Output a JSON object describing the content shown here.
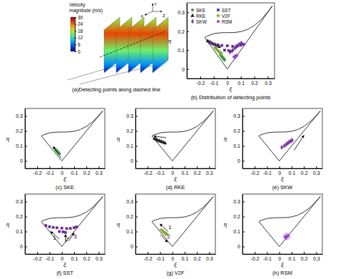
{
  "chart_data": [
    {
      "type": "illustration",
      "title": "(a)Detecting points along dashed line",
      "colorbar": {
        "label": "Velocity magnitude (m/s)",
        "lim": [
          0,
          30
        ],
        "ticks": [
          0,
          6,
          12,
          18,
          24,
          30
        ]
      },
      "axis_labels": [
        "Y",
        "X",
        "Z"
      ]
    },
    {
      "type": "scatter",
      "title": "(b) Distribution of detecting points",
      "x_label": "ξ",
      "y_label": "η",
      "xlim": [
        -0.3,
        0.35
      ],
      "ylim": [
        -0.05,
        0.35
      ],
      "xticks": [
        -0.2,
        -0.1,
        0,
        0.1,
        0.2,
        0.3
      ],
      "yticks": [
        0,
        0.1,
        0.2,
        0.3
      ],
      "legend": "upper left",
      "series": [
        {
          "type": "line",
          "color": "#000000",
          "x": [
            0,
            -0.1667,
            -0.15,
            -0.1,
            -0.05,
            0,
            0.05,
            0.1,
            0.15,
            0.2,
            0.25,
            0.3,
            0.3333,
            0
          ],
          "values": [
            0,
            0.1667,
            0.174,
            0.1872,
            0.1918,
            0.1925,
            0.1931,
            0.1976,
            0.2093,
            0.2303,
            0.2613,
            0.3017,
            0.3333,
            0
          ]
        },
        {
          "name": "SKE",
          "color": "#3a9a3a",
          "marker": "circle",
          "x": [
            -0.05,
            -0.045,
            -0.04,
            -0.035,
            -0.03,
            -0.025,
            -0.02
          ],
          "values": [
            0.075,
            0.07,
            0.066,
            0.061,
            0.057,
            0.052,
            0.048
          ]
        },
        {
          "name": "RKE",
          "color": "#222222",
          "marker": "triangle",
          "x": [
            -0.145,
            -0.13,
            -0.12,
            -0.105,
            -0.09,
            -0.075,
            -0.06
          ],
          "values": [
            0.148,
            0.142,
            0.138,
            0.133,
            0.128,
            0.124,
            0.118
          ]
        },
        {
          "name": "SKW",
          "color": "#7a3fb0",
          "marker": "diamond",
          "x": [
            0.02,
            0.04,
            0.055,
            0.065,
            0.075,
            0.085,
            0.095,
            0.105
          ],
          "values": [
            0.09,
            0.1,
            0.11,
            0.117,
            0.123,
            0.128,
            0.133,
            0.138
          ]
        },
        {
          "name": "SST",
          "color": "#6a2c91",
          "marker": "square",
          "x": [
            -0.13,
            -0.1,
            -0.07,
            -0.04,
            0,
            0.04,
            0.07,
            0.1,
            0.12,
            -0.02,
            0.01,
            0.03
          ],
          "values": [
            0.14,
            0.132,
            0.128,
            0.125,
            0.123,
            0.12,
            0.121,
            0.126,
            0.131,
            0.1,
            0.098,
            0.094
          ]
        },
        {
          "name": "V2F",
          "color": "#7fa830",
          "marker": "star",
          "x": [
            -0.09,
            -0.08,
            -0.07,
            -0.06,
            -0.05,
            -0.045
          ],
          "values": [
            0.112,
            0.104,
            0.097,
            0.09,
            0.085,
            0.08
          ]
        },
        {
          "name": "RSM",
          "color": "#9b3fc8",
          "marker": "circle",
          "x": [
            0.05,
            0.055,
            0.06,
            0.065,
            0.07,
            0.058
          ],
          "values": [
            0.064,
            0.066,
            0.068,
            0.07,
            0.072,
            0.062
          ]
        }
      ]
    },
    {
      "type": "scatter",
      "title": "(c) SKE",
      "x_label": "ξ",
      "y_label": "η",
      "xlim": [
        -0.3,
        0.35
      ],
      "ylim": [
        -0.05,
        0.35
      ],
      "xticks": [
        -0.2,
        -0.1,
        0,
        0.1,
        0.2,
        0.3
      ],
      "yticks": [
        0,
        0.1,
        0.2,
        0.3
      ],
      "series": [
        {
          "type": "line",
          "color": "#000000",
          "x": [
            0,
            -0.1667,
            -0.15,
            -0.1,
            -0.05,
            0,
            0.05,
            0.1,
            0.15,
            0.2,
            0.25,
            0.3,
            0.3333,
            0
          ],
          "values": [
            0,
            0.1667,
            0.174,
            0.1872,
            0.1918,
            0.1925,
            0.1931,
            0.1976,
            0.2093,
            0.2303,
            0.2613,
            0.3017,
            0.3333,
            0
          ]
        },
        {
          "color": "#3a9a3a",
          "marker": "circle",
          "x": [
            -0.05,
            -0.045,
            -0.04,
            -0.035,
            -0.03,
            -0.025,
            -0.02
          ],
          "values": [
            0.075,
            0.07,
            0.066,
            0.061,
            0.057,
            0.052,
            0.048
          ]
        }
      ],
      "arrows": [
        {
          "x": [
            -0.005,
            -0.07
          ],
          "y": [
            0.02,
            0.095
          ]
        }
      ]
    },
    {
      "type": "scatter",
      "title": "(d) RKE",
      "x_label": "ξ",
      "y_label": "η",
      "xlim": [
        -0.3,
        0.35
      ],
      "ylim": [
        -0.05,
        0.35
      ],
      "xticks": [
        -0.2,
        -0.1,
        0,
        0.1,
        0.2,
        0.3
      ],
      "yticks": [
        0,
        0.1,
        0.2,
        0.3
      ],
      "series": [
        {
          "type": "line",
          "color": "#000000",
          "x": [
            0,
            -0.1667,
            -0.15,
            -0.1,
            -0.05,
            0,
            0.05,
            0.1,
            0.15,
            0.2,
            0.25,
            0.3,
            0.3333,
            0
          ],
          "values": [
            0,
            0.1667,
            0.174,
            0.1872,
            0.1918,
            0.1925,
            0.1931,
            0.1976,
            0.2093,
            0.2303,
            0.2613,
            0.3017,
            0.3333,
            0
          ]
        },
        {
          "color": "#222222",
          "marker": "triangle",
          "x": [
            -0.145,
            -0.13,
            -0.12,
            -0.105,
            -0.09,
            -0.075,
            -0.06
          ],
          "values": [
            0.148,
            0.142,
            0.138,
            0.133,
            0.128,
            0.124,
            0.118
          ]
        }
      ],
      "arrows": [
        {
          "x": [
            -0.05,
            -0.15
          ],
          "y": [
            0.155,
            0.165
          ]
        }
      ]
    },
    {
      "type": "scatter",
      "title": "(e) SKW",
      "x_label": "ξ",
      "y_label": "η",
      "xlim": [
        -0.3,
        0.35
      ],
      "ylim": [
        -0.05,
        0.35
      ],
      "xticks": [
        -0.2,
        -0.1,
        0,
        0.1,
        0.2,
        0.3
      ],
      "yticks": [
        0,
        0.1,
        0.2,
        0.3
      ],
      "series": [
        {
          "type": "line",
          "color": "#000000",
          "x": [
            0,
            -0.1667,
            -0.15,
            -0.1,
            -0.05,
            0,
            0.05,
            0.1,
            0.15,
            0.2,
            0.25,
            0.3,
            0.3333,
            0
          ],
          "values": [
            0,
            0.1667,
            0.174,
            0.1872,
            0.1918,
            0.1925,
            0.1931,
            0.1976,
            0.2093,
            0.2303,
            0.2613,
            0.3017,
            0.3333,
            0
          ]
        },
        {
          "color": "#7a3fb0",
          "marker": "diamond",
          "x": [
            0.02,
            0.04,
            0.055,
            0.065,
            0.075,
            0.085,
            0.095,
            0.105
          ],
          "values": [
            0.09,
            0.1,
            0.11,
            0.117,
            0.123,
            0.128,
            0.133,
            0.138
          ]
        }
      ],
      "arrows": [
        {
          "x": [
            0.12,
            0.2
          ],
          "y": [
            0.07,
            0.17
          ]
        }
      ]
    },
    {
      "type": "scatter",
      "title": "(f) SST",
      "x_label": "ξ",
      "y_label": "η",
      "xlim": [
        -0.3,
        0.35
      ],
      "ylim": [
        -0.05,
        0.35
      ],
      "xticks": [
        -0.2,
        -0.1,
        0,
        0.1,
        0.2,
        0.3
      ],
      "yticks": [
        0,
        0.1,
        0.2,
        0.3
      ],
      "series": [
        {
          "type": "line",
          "color": "#000000",
          "x": [
            0,
            -0.1667,
            -0.15,
            -0.1,
            -0.05,
            0,
            0.05,
            0.1,
            0.15,
            0.2,
            0.25,
            0.3,
            0.3333,
            0
          ],
          "values": [
            0,
            0.1667,
            0.174,
            0.1872,
            0.1918,
            0.1925,
            0.1931,
            0.1976,
            0.2093,
            0.2303,
            0.2613,
            0.3017,
            0.3333,
            0
          ]
        },
        {
          "color": "#6a2c91",
          "marker": "square",
          "x": [
            -0.13,
            -0.1,
            -0.07,
            -0.04,
            0,
            0.04,
            0.07,
            0.1,
            0.12,
            -0.02,
            0.01,
            0.03
          ],
          "values": [
            0.14,
            0.132,
            0.128,
            0.125,
            0.123,
            0.12,
            0.121,
            0.126,
            0.131,
            0.1,
            0.098,
            0.094
          ]
        }
      ],
      "arrows": [
        {
          "x": [
            -0.02,
            -0.09
          ],
          "y": [
            0.05,
            0.1
          ]
        },
        {
          "x": [
            0.03,
            0.03
          ],
          "y": [
            0.03,
            0.08
          ]
        },
        {
          "x": [
            0.06,
            0.1
          ],
          "y": [
            0.04,
            0.09
          ]
        }
      ],
      "annotations": [
        {
          "text": "1",
          "x": -0.06,
          "y": 0.045
        },
        {
          "text": "2",
          "x": 0.045,
          "y": 0.035
        },
        {
          "text": "3",
          "x": 0.11,
          "y": 0.055
        }
      ]
    },
    {
      "type": "scatter",
      "title": "(g) V2F",
      "x_label": "ξ",
      "y_label": "η",
      "xlim": [
        -0.3,
        0.35
      ],
      "ylim": [
        -0.05,
        0.35
      ],
      "xticks": [
        -0.2,
        -0.1,
        0,
        0.1,
        0.2,
        0.3
      ],
      "yticks": [
        0,
        0.1,
        0.2,
        0.3
      ],
      "series": [
        {
          "type": "line",
          "color": "#000000",
          "x": [
            0,
            -0.1667,
            -0.15,
            -0.1,
            -0.05,
            0,
            0.05,
            0.1,
            0.15,
            0.2,
            0.25,
            0.3,
            0.3333,
            0
          ],
          "values": [
            0,
            0.1667,
            0.174,
            0.1872,
            0.1918,
            0.1925,
            0.1931,
            0.1976,
            0.2093,
            0.2303,
            0.2613,
            0.3017,
            0.3333,
            0
          ]
        },
        {
          "color": "#7fa830",
          "marker": "star",
          "x": [
            -0.09,
            -0.08,
            -0.07,
            -0.06,
            -0.05,
            -0.045
          ],
          "values": [
            0.112,
            0.104,
            0.097,
            0.09,
            0.085,
            0.08
          ]
        }
      ],
      "arrows": [
        {
          "x": [
            -0.035,
            -0.1
          ],
          "y": [
            0.1,
            0.15
          ]
        },
        {
          "x": [
            -0.1,
            -0.04
          ],
          "y": [
            0.08,
            0.03
          ]
        }
      ],
      "annotations": [
        {
          "text": "1",
          "x": -0.02,
          "y": 0.115
        },
        {
          "text": "2",
          "x": -0.03,
          "y": 0.055
        }
      ]
    },
    {
      "type": "scatter",
      "title": "(h) RSM",
      "x_label": "ξ",
      "y_label": "η",
      "xlim": [
        -0.3,
        0.35
      ],
      "ylim": [
        -0.05,
        0.35
      ],
      "xticks": [
        -0.2,
        -0.1,
        0,
        0.1,
        0.2,
        0.3
      ],
      "yticks": [
        0,
        0.1,
        0.2,
        0.3
      ],
      "series": [
        {
          "type": "line",
          "color": "#000000",
          "x": [
            0,
            -0.1667,
            -0.15,
            -0.1,
            -0.05,
            0,
            0.05,
            0.1,
            0.15,
            0.2,
            0.25,
            0.3,
            0.3333,
            0
          ],
          "values": [
            0,
            0.1667,
            0.174,
            0.1872,
            0.1918,
            0.1925,
            0.1931,
            0.1976,
            0.2093,
            0.2303,
            0.2613,
            0.3017,
            0.3333,
            0
          ]
        },
        {
          "color": "#9b3fc8",
          "marker": "circle",
          "x": [
            0.05,
            0.055,
            0.06,
            0.065,
            0.07,
            0.058
          ],
          "values": [
            0.064,
            0.066,
            0.068,
            0.07,
            0.072,
            0.062
          ]
        }
      ],
      "highlight": {
        "x": 0.06,
        "y": 0.068,
        "r": 0.025
      }
    }
  ]
}
